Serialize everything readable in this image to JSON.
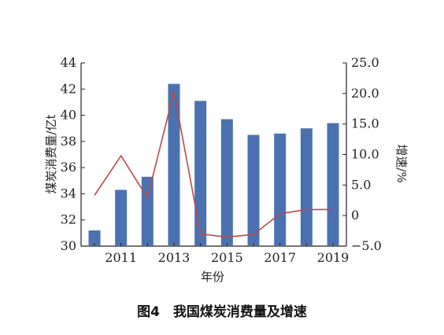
{
  "caption": "图4　我国煤炭消费量及增速",
  "chart_data": {
    "type": "bar+line",
    "x": [
      2010,
      2011,
      2012,
      2013,
      2014,
      2015,
      2016,
      2017,
      2018,
      2019
    ],
    "x_tick_labels": [
      "2011",
      "2013",
      "2015",
      "2017",
      "2019"
    ],
    "xlabel": "年份",
    "ylabel_left": "煤炭消费量/亿t",
    "ylabel_right": "增速/%",
    "ylim_left": [
      30,
      44
    ],
    "ylim_right": [
      -5,
      25
    ],
    "y_ticks_left": [
      "30",
      "32",
      "34",
      "36",
      "38",
      "40",
      "42",
      "44"
    ],
    "y_ticks_right": [
      "−5.0",
      "0",
      "5.0",
      "10.0",
      "15.0",
      "20.0",
      "25.0"
    ],
    "series": [
      {
        "type": "bar",
        "axis": "left",
        "color": "#4a72b0",
        "values": [
          31.2,
          34.3,
          35.3,
          42.4,
          41.1,
          39.7,
          38.5,
          38.6,
          39.0,
          39.4
        ]
      },
      {
        "type": "line",
        "axis": "right",
        "color": "#b84a4e",
        "values": [
          3.3,
          9.8,
          2.9,
          20.3,
          -3.0,
          -3.5,
          -3.1,
          0.3,
          1.0,
          1.0
        ]
      }
    ]
  }
}
